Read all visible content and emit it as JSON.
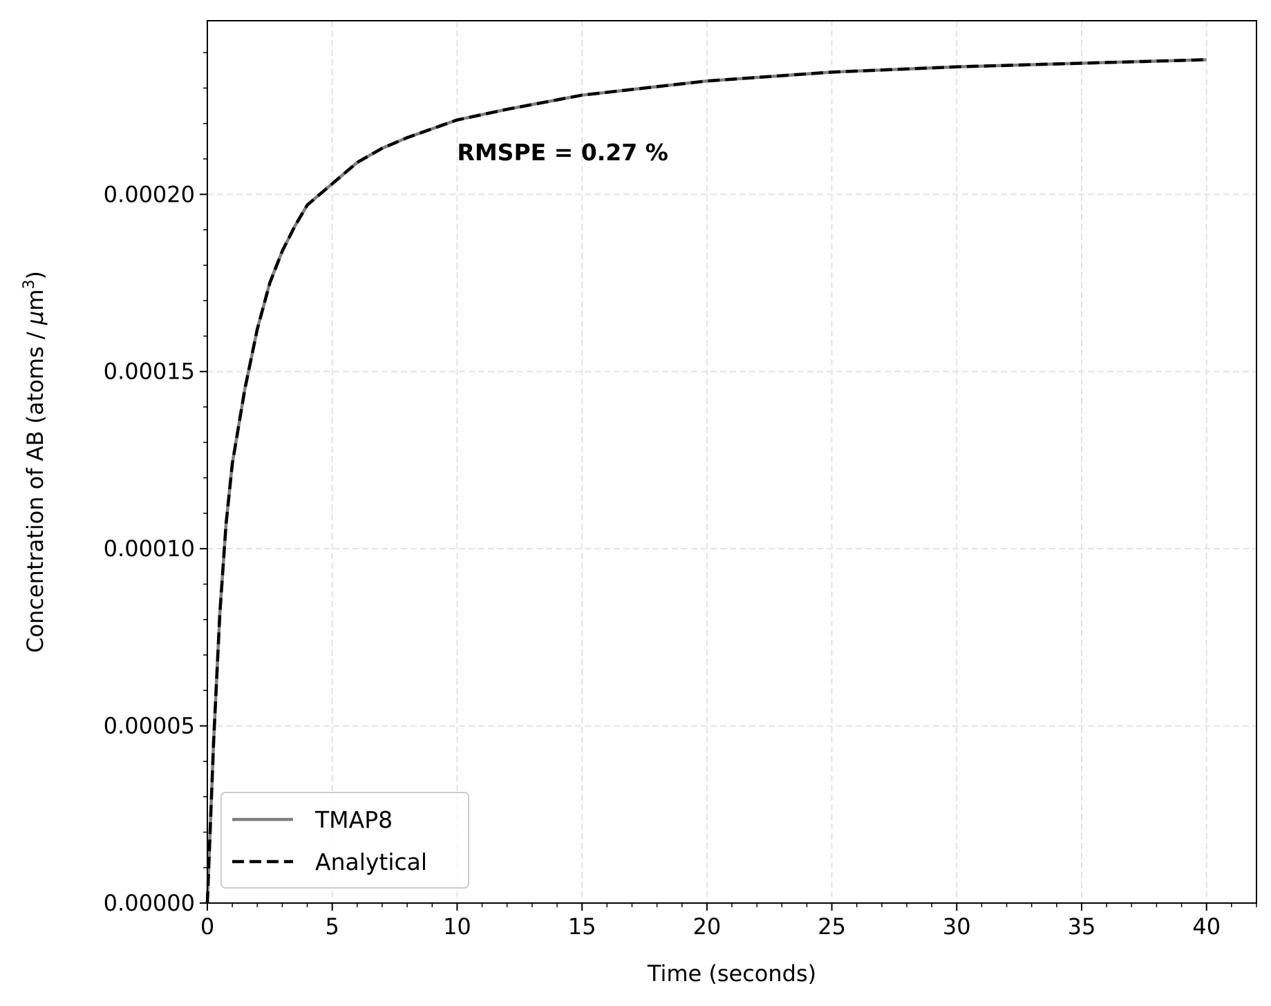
{
  "chart_data": {
    "type": "line",
    "xlabel": "Time (seconds)",
    "ylabel_prefix": "Concentration of AB (atoms / ",
    "ylabel_mu": "μ",
    "ylabel_unit": "m",
    "ylabel_exp": "3",
    "ylabel_suffix": ")",
    "xlim": [
      0,
      42
    ],
    "ylim": [
      0,
      0.000249
    ],
    "xticks": [
      0,
      5,
      10,
      15,
      20,
      25,
      30,
      35,
      40
    ],
    "xtick_labels": [
      "0",
      "5",
      "10",
      "15",
      "20",
      "25",
      "30",
      "35",
      "40"
    ],
    "xminor_step": 1,
    "yticks": [
      0,
      5e-05,
      0.0001,
      0.00015,
      0.0002
    ],
    "ytick_labels": [
      "0.00000",
      "0.00005",
      "0.00010",
      "0.00015",
      "0.00020"
    ],
    "yminor_step": 1e-05,
    "grid": true,
    "legend_position": "lower-left",
    "annotation": {
      "text": "RMSPE = 0.27 %",
      "x": 10,
      "y": 0.000212
    },
    "series": [
      {
        "name": "TMAP8",
        "color": "#808080",
        "style": "solid",
        "x": [
          0,
          0.25,
          0.5,
          0.75,
          1,
          1.5,
          2,
          2.5,
          3,
          3.5,
          4,
          5,
          6,
          7,
          8,
          10,
          12,
          15,
          20,
          25,
          30,
          35,
          40
        ],
        "y": [
          0,
          4.52e-05,
          8.18e-05,
          0.000107,
          0.000124,
          0.000145,
          0.000162,
          0.000175,
          0.000184,
          0.000191,
          0.000197,
          0.000203,
          0.000209,
          0.000213,
          0.000216,
          0.000221,
          0.000224,
          0.000228,
          0.000232,
          0.0002345,
          0.000236,
          0.000237,
          0.000238
        ]
      },
      {
        "name": "Analytical",
        "color": "#000000",
        "style": "dashed",
        "x": [
          0,
          0.25,
          0.5,
          0.75,
          1,
          1.5,
          2,
          2.5,
          3,
          3.5,
          4,
          5,
          6,
          7,
          8,
          10,
          12,
          15,
          20,
          25,
          30,
          35,
          40
        ],
        "y": [
          0,
          4.52e-05,
          8.18e-05,
          0.000107,
          0.000124,
          0.000145,
          0.000162,
          0.000175,
          0.000184,
          0.000191,
          0.000197,
          0.000203,
          0.000209,
          0.000213,
          0.000216,
          0.000221,
          0.000224,
          0.000228,
          0.000232,
          0.0002345,
          0.000236,
          0.000237,
          0.000238
        ]
      }
    ]
  }
}
